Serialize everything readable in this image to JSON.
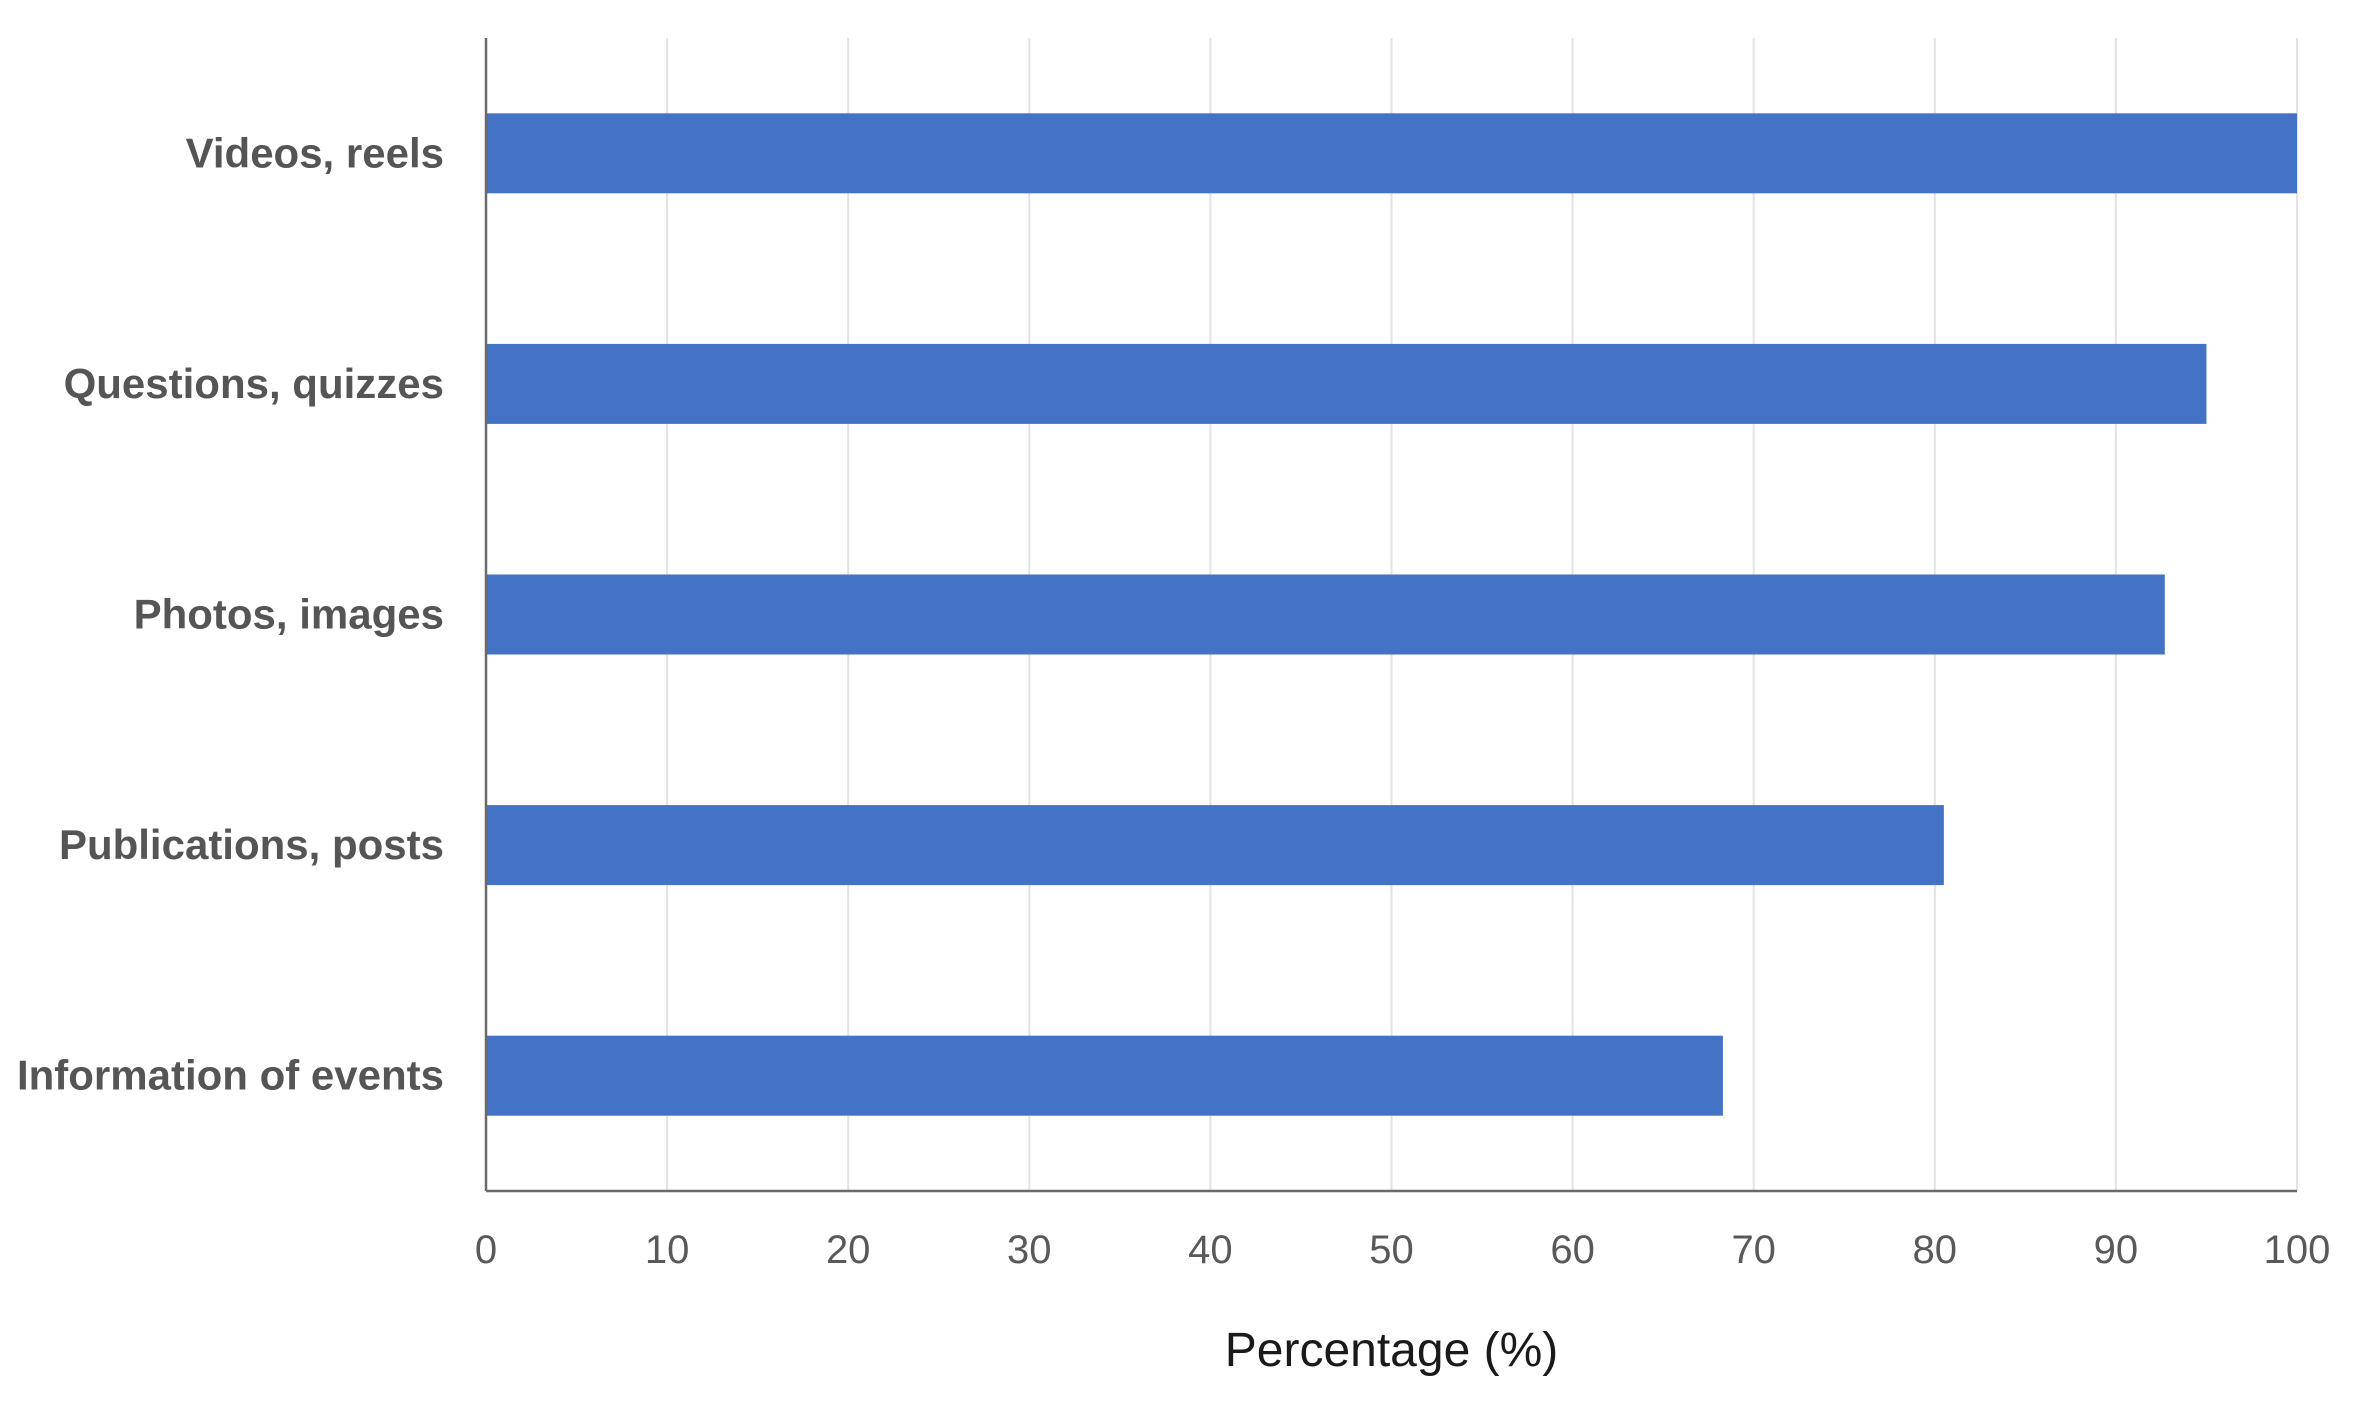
{
  "chart_data": {
    "type": "bar",
    "orientation": "horizontal",
    "categories": [
      "Videos, reels",
      "Questions, quizzes",
      "Photos, images",
      "Publications, posts",
      "Information of events"
    ],
    "values": [
      100,
      95,
      92.7,
      80.5,
      68.3
    ],
    "xlabel": "Percentage (%)",
    "ylabel": "",
    "xlim": [
      0,
      100
    ],
    "xticks": [
      "0",
      "10",
      "20",
      "30",
      "40",
      "50",
      "60",
      "70",
      "80",
      "90",
      "100"
    ],
    "grid": "vertical",
    "bar_color": "#4472C4",
    "legend": "none"
  }
}
